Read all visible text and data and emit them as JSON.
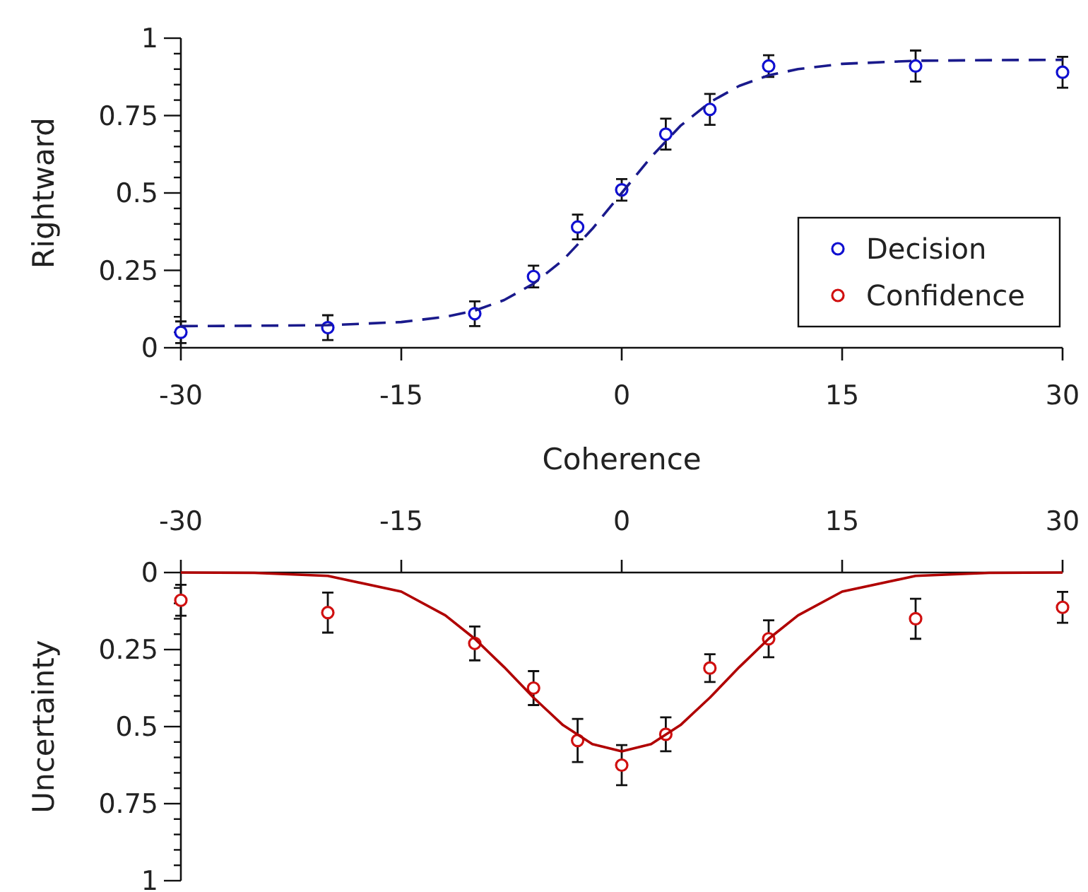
{
  "chart_data": [
    {
      "type": "scatter",
      "xlabel": "Coherence",
      "ylabel": "Rightward",
      "xlim": [
        -30,
        30
      ],
      "xticks": [
        -30,
        -15,
        0,
        15,
        30
      ],
      "ylim": [
        0,
        1
      ],
      "yticks": [
        0,
        {
          "value": 0.05,
          "label": null
        },
        {
          "value": 0.1,
          "label": null
        },
        {
          "value": 0.15,
          "label": null
        },
        {
          "value": 0.2,
          "label": null
        },
        0.25,
        {
          "value": 0.3,
          "label": null
        },
        {
          "value": 0.35,
          "label": null
        },
        {
          "value": 0.4,
          "label": null
        },
        {
          "value": 0.45,
          "label": null
        },
        0.5,
        {
          "value": 0.55,
          "label": null
        },
        {
          "value": 0.6,
          "label": null
        },
        {
          "value": 0.65,
          "label": null
        },
        {
          "value": 0.7,
          "label": null
        },
        0.75,
        {
          "value": 0.8,
          "label": null
        },
        {
          "value": 0.85,
          "label": null
        },
        {
          "value": 0.9,
          "label": null
        },
        {
          "value": 0.95,
          "label": null
        },
        1
      ],
      "legend": "bottom right",
      "grid": false,
      "series": [
        {
          "name": "Decision",
          "marker": "circle",
          "color": "#1010d0",
          "x": [
            -30,
            -20,
            -10,
            -6,
            -3,
            0,
            3,
            6,
            10,
            20,
            30
          ],
          "values": [
            0.05,
            0.065,
            0.11,
            0.23,
            0.39,
            0.51,
            0.69,
            0.77,
            0.91,
            0.91,
            0.89
          ],
          "errors": [
            0.035,
            0.04,
            0.04,
            0.035,
            0.04,
            0.035,
            0.05,
            0.05,
            0.035,
            0.05,
            0.05
          ]
        },
        {
          "type": "line",
          "color": "#1a1a8c",
          "line_style": "dashed",
          "x": [
            -30,
            -25,
            -20,
            -15,
            -12,
            -10,
            -8,
            -6,
            -4,
            -2,
            0,
            2,
            4,
            6,
            8,
            10,
            12,
            15,
            20,
            25,
            30
          ],
          "values": [
            0.07,
            0.071,
            0.073,
            0.083,
            0.1,
            0.12,
            0.154,
            0.207,
            0.283,
            0.384,
            0.5,
            0.616,
            0.717,
            0.793,
            0.846,
            0.88,
            0.9,
            0.917,
            0.927,
            0.929,
            0.93
          ]
        }
      ]
    },
    {
      "type": "scatter",
      "ylabel": "Uncertainty",
      "xlim": [
        -30,
        30
      ],
      "xticks": [
        -30,
        -15,
        0,
        15,
        30
      ],
      "ylim": [
        1,
        0
      ],
      "yticks": [
        0,
        {
          "value": 0.05,
          "label": null
        },
        {
          "value": 0.1,
          "label": null
        },
        {
          "value": 0.15,
          "label": null
        },
        {
          "value": 0.2,
          "label": null
        },
        0.25,
        {
          "value": 0.3,
          "label": null
        },
        {
          "value": 0.35,
          "label": null
        },
        {
          "value": 0.4,
          "label": null
        },
        {
          "value": 0.45,
          "label": null
        },
        0.5,
        {
          "value": 0.55,
          "label": null
        },
        {
          "value": 0.6,
          "label": null
        },
        {
          "value": 0.65,
          "label": null
        },
        {
          "value": 0.7,
          "label": null
        },
        0.75,
        {
          "value": 0.8,
          "label": null
        },
        {
          "value": 0.85,
          "label": null
        },
        {
          "value": 0.9,
          "label": null
        },
        {
          "value": 0.95,
          "label": null
        },
        1
      ],
      "grid": false,
      "series": [
        {
          "name": "Confidence",
          "marker": "circle",
          "color": "#d01010",
          "x": [
            -30,
            -20,
            -10,
            -6,
            -3,
            0,
            3,
            6,
            10,
            20,
            30
          ],
          "values": [
            0.09,
            0.13,
            0.23,
            0.375,
            0.545,
            0.625,
            0.525,
            0.31,
            0.215,
            0.15,
            0.113
          ],
          "errors": [
            0.05,
            0.065,
            0.055,
            0.055,
            0.07,
            0.065,
            0.055,
            0.045,
            0.06,
            0.065,
            0.05
          ]
        },
        {
          "type": "line",
          "color": "#b00000",
          "line_style": "solid",
          "x": [
            -30,
            -25,
            -20,
            -15,
            -12,
            -10,
            -8,
            -6,
            -4,
            -2,
            0,
            2,
            4,
            6,
            8,
            10,
            12,
            15,
            20,
            25,
            30
          ],
          "values": [
            0,
            0.001,
            0.011,
            0.062,
            0.139,
            0.215,
            0.307,
            0.406,
            0.495,
            0.557,
            0.58,
            0.557,
            0.495,
            0.406,
            0.307,
            0.215,
            0.139,
            0.062,
            0.011,
            0.001,
            0
          ]
        }
      ]
    }
  ]
}
